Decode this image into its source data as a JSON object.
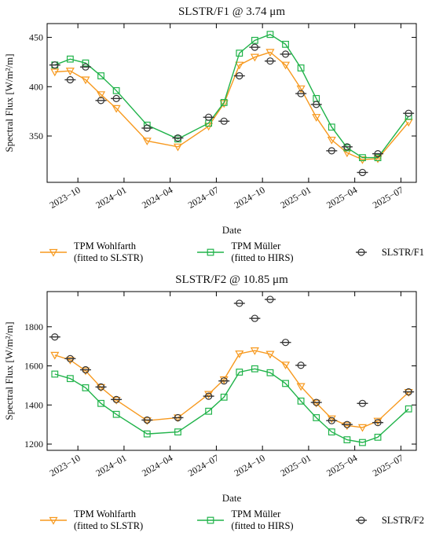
{
  "chart_data": [
    {
      "type": "line",
      "title": "SLSTR/F1 @ 3.74 μm",
      "xlabel": "Date",
      "ylabel": "Spectral Flux [W/m²/m]",
      "x": [
        "2023-08",
        "2023-09",
        "2023-10",
        "2023-11",
        "2023-12",
        "2024-02",
        "2024-04",
        "2024-06",
        "2024-07",
        "2024-08",
        "2024-09",
        "2024-10",
        "2024-11",
        "2024-12",
        "2025-01",
        "2025-02",
        "2025-03",
        "2025-04",
        "2025-05",
        "2025-07"
      ],
      "xlim": [
        "2023-08",
        "2025-08"
      ],
      "xticks": [
        {
          "value": "2023-10",
          "label": "2023−10"
        },
        {
          "value": "2024-01",
          "label": "2024−01"
        },
        {
          "value": "2024-04",
          "label": "2024−04"
        },
        {
          "value": "2024-07",
          "label": "2024−07"
        },
        {
          "value": "2024-10",
          "label": "2024−10"
        },
        {
          "value": "2025-01",
          "label": "2025−01"
        },
        {
          "value": "2025-04",
          "label": "2025−04"
        },
        {
          "value": "2025-07",
          "label": "2025−07"
        }
      ],
      "ylim": [
        303,
        464
      ],
      "yticks": [
        350,
        400,
        450
      ],
      "legend": "below",
      "series": [
        {
          "name": "TPM Wohlfarth\n(fitted to SLSTR)",
          "color": "#f7991e",
          "marker": "triangle-down",
          "linestyle": "solid",
          "values": [
            415,
            416,
            407,
            392,
            378,
            345,
            339,
            360,
            383,
            422,
            430,
            435,
            422,
            398,
            369,
            346,
            333,
            326,
            327,
            364
          ]
        },
        {
          "name": "TPM Müller\n(fitted to HIRS)",
          "color": "#20b34a",
          "marker": "square",
          "linestyle": "solid",
          "values": [
            422,
            428,
            424,
            411,
            396,
            361,
            347,
            363,
            384,
            434,
            447,
            453,
            443,
            419,
            388,
            359,
            338,
            328,
            328,
            370
          ]
        },
        {
          "name": "SLSTR/F1",
          "color": "#333333",
          "marker": "circle",
          "linestyle": "none",
          "values": [
            422,
            407,
            420,
            386,
            388,
            358,
            348,
            369,
            365,
            411,
            440,
            426,
            433,
            393,
            382,
            335,
            339,
            313,
            332,
            373
          ]
        }
      ]
    },
    {
      "type": "line",
      "title": "SLSTR/F2 @ 10.85 μm",
      "xlabel": "Date",
      "ylabel": "Spectral Flux [W/m²/m]",
      "x": [
        "2023-08",
        "2023-09",
        "2023-10",
        "2023-11",
        "2023-12",
        "2024-02",
        "2024-04",
        "2024-06",
        "2024-07",
        "2024-08",
        "2024-09",
        "2024-10",
        "2024-11",
        "2024-12",
        "2025-01",
        "2025-02",
        "2025-03",
        "2025-04",
        "2025-05",
        "2025-07"
      ],
      "xlim": [
        "2023-08",
        "2025-08"
      ],
      "xticks": [
        {
          "value": "2023-10",
          "label": "2023−10"
        },
        {
          "value": "2024-01",
          "label": "2024−01"
        },
        {
          "value": "2024-04",
          "label": "2024−04"
        },
        {
          "value": "2024-07",
          "label": "2024−07"
        },
        {
          "value": "2024-10",
          "label": "2024−10"
        },
        {
          "value": "2025-01",
          "label": "2025−01"
        },
        {
          "value": "2025-04",
          "label": "2025−04"
        },
        {
          "value": "2025-07",
          "label": "2025−07"
        }
      ],
      "ylim": [
        1168,
        1980
      ],
      "yticks": [
        1200,
        1400,
        1600,
        1800
      ],
      "legend": "below",
      "series": [
        {
          "name": "TPM Wohlfarth\n(fitted to SLSTR)",
          "color": "#f7991e",
          "marker": "triangle-down",
          "linestyle": "solid",
          "values": [
            1655,
            1630,
            1575,
            1490,
            1425,
            1320,
            1335,
            1455,
            1530,
            1662,
            1678,
            1660,
            1605,
            1495,
            1410,
            1330,
            1295,
            1285,
            1318,
            1465
          ]
        },
        {
          "name": "TPM Müller\n(fitted to HIRS)",
          "color": "#20b34a",
          "marker": "square",
          "linestyle": "solid",
          "values": [
            1558,
            1535,
            1488,
            1408,
            1352,
            1252,
            1262,
            1368,
            1440,
            1568,
            1585,
            1565,
            1510,
            1420,
            1335,
            1262,
            1222,
            1208,
            1235,
            1380
          ]
        },
        {
          "name": "SLSTR/F2",
          "color": "#333333",
          "marker": "circle",
          "linestyle": "none",
          "values": [
            1748,
            1637,
            1580,
            1492,
            1428,
            1323,
            1335,
            1445,
            1523,
            1920,
            1843,
            1940,
            1720,
            1603,
            1413,
            1320,
            1300,
            1408,
            1310,
            1467
          ]
        }
      ]
    }
  ]
}
